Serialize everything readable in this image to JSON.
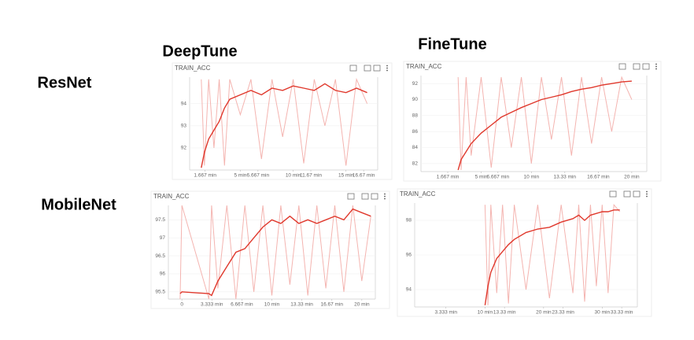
{
  "columns": [
    "DeepTune",
    "FineTune"
  ],
  "rows": [
    "ResNet",
    "MobileNet"
  ],
  "chart_data": [
    {
      "type": "line",
      "title": "TRAIN_ACC",
      "x": [
        1.3,
        1.6,
        2,
        2.5,
        3,
        3.5,
        4,
        5,
        6,
        7,
        8,
        9,
        10,
        11,
        12,
        13,
        14,
        15,
        16,
        17
      ],
      "series": [
        {
          "color": "#f4b4b0",
          "values": [
            95.1,
            91.2,
            95.1,
            92.0,
            95.1,
            91.2,
            95.1,
            93.5,
            95.1,
            91.5,
            95.1,
            92.5,
            95.1,
            91.3,
            95.1,
            93.0,
            95.1,
            91.2,
            95.1,
            94.0
          ]
        },
        {
          "color": "#e0382c",
          "values": [
            91.1,
            91.8,
            92.4,
            92.8,
            93.2,
            93.8,
            94.2,
            94.4,
            94.6,
            94.4,
            94.7,
            94.6,
            94.8,
            94.7,
            94.6,
            94.9,
            94.6,
            94.5,
            94.7,
            94.5
          ]
        }
      ],
      "xlim": [
        0.2,
        18
      ],
      "ylim": [
        91.0,
        95.2
      ],
      "yticks": [
        92,
        93,
        94
      ],
      "xticks": [
        {
          "value": 1.667,
          "label": "1.667 min"
        },
        {
          "value": 5,
          "label": "5 min"
        },
        {
          "value": 6.667,
          "label": "6.667 min"
        },
        {
          "value": 10,
          "label": "10 min"
        },
        {
          "value": 11.67,
          "label": "11.67 min"
        },
        {
          "value": 15,
          "label": "15 min"
        },
        {
          "value": 16.67,
          "label": "16.67 min"
        }
      ]
    },
    {
      "type": "line",
      "title": "TRAIN_ACC",
      "x": [
        2.7,
        3,
        3.5,
        4,
        5,
        6,
        7,
        8,
        9,
        10,
        11,
        12,
        13,
        14,
        15,
        16,
        17,
        18,
        19,
        20
      ],
      "series": [
        {
          "color": "#f4b4b0",
          "values": [
            92.8,
            81.2,
            92.8,
            83,
            92.8,
            81.5,
            92.8,
            84,
            92.8,
            82,
            92.8,
            85,
            92.8,
            83,
            92.8,
            84.5,
            92.8,
            86,
            92.8,
            90
          ]
        },
        {
          "color": "#e0382c",
          "values": [
            81.2,
            82.5,
            83.5,
            84.5,
            85.8,
            86.8,
            87.8,
            88.4,
            89,
            89.5,
            90,
            90.3,
            90.6,
            91,
            91.3,
            91.5,
            91.8,
            92,
            92.2,
            92.3
          ]
        }
      ],
      "xlim": [
        -1,
        21.5
      ],
      "ylim": [
        81,
        93
      ],
      "yticks": [
        82,
        84,
        86,
        88,
        90,
        92
      ],
      "xticks": [
        {
          "value": 1.667,
          "label": "1.667 min"
        },
        {
          "value": 5,
          "label": "5 min"
        },
        {
          "value": 6.667,
          "label": "6.667 min"
        },
        {
          "value": 10,
          "label": "10 min"
        },
        {
          "value": 13.33,
          "label": "13.33 min"
        },
        {
          "value": 16.67,
          "label": "16.67 min"
        },
        {
          "value": 20,
          "label": "20 min"
        }
      ]
    },
    {
      "type": "line",
      "title": "TRAIN_ACC",
      "x": [
        -0.2,
        0,
        3,
        3.3,
        4,
        5,
        6,
        7,
        8,
        9,
        10,
        11,
        12,
        13,
        14,
        15,
        16,
        17,
        18,
        19,
        20,
        21
      ],
      "series": [
        {
          "color": "#f4b4b0",
          "values": [
            95.3,
            97.9,
            95.3,
            97.9,
            95.6,
            97.9,
            95.3,
            97.9,
            95.5,
            97.9,
            95.4,
            97.9,
            95.7,
            97.9,
            95.4,
            97.9,
            95.6,
            97.9,
            95.5,
            97.9,
            95.8,
            97.6
          ]
        },
        {
          "color": "#e0382c",
          "values": [
            95.45,
            95.5,
            95.45,
            95.4,
            95.8,
            96.2,
            96.6,
            96.7,
            97.0,
            97.3,
            97.5,
            97.4,
            97.6,
            97.4,
            97.5,
            97.4,
            97.5,
            97.6,
            97.5,
            97.8,
            97.7,
            97.6
          ]
        }
      ],
      "xlim": [
        -1.5,
        21.5
      ],
      "ylim": [
        95.3,
        97.9
      ],
      "yticks": [
        95.5,
        96,
        96.5,
        97,
        97.5
      ],
      "xticks": [
        0,
        {
          "value": 3.333,
          "label": "3.333 min"
        },
        {
          "value": 6.667,
          "label": "6.667 min"
        },
        {
          "value": 10,
          "label": "10 min"
        },
        {
          "value": 13.33,
          "label": "13.33 min"
        },
        {
          "value": 16.67,
          "label": "16.67 min"
        },
        {
          "value": 20,
          "label": "20 min"
        }
      ]
    },
    {
      "type": "line",
      "title": "TRAIN_ACC",
      "x": [
        10,
        10.5,
        11,
        12,
        13,
        14,
        15,
        17,
        19,
        21,
        23,
        25,
        26,
        27,
        28,
        29,
        30,
        31,
        32,
        33
      ],
      "series": [
        {
          "color": "#f4b4b0",
          "values": [
            98.9,
            93.1,
            98.9,
            93.8,
            98.9,
            93.2,
            98.9,
            94,
            98.9,
            93.5,
            98.9,
            93.8,
            98.9,
            93.3,
            98.9,
            94.2,
            98.9,
            93.8,
            98.9,
            98.5
          ]
        },
        {
          "color": "#e0382c",
          "values": [
            93.1,
            94.2,
            95,
            95.8,
            96.2,
            96.6,
            96.9,
            97.3,
            97.5,
            97.6,
            97.9,
            98.1,
            98.3,
            98.0,
            98.3,
            98.4,
            98.5,
            98.5,
            98.6,
            98.6
          ]
        }
      ],
      "xlim": [
        -2,
        36
      ],
      "ylim": [
        93.0,
        99.0
      ],
      "yticks": [
        94,
        96,
        98
      ],
      "xticks": [
        {
          "value": 3.333,
          "label": "3.333 min"
        },
        {
          "value": 10,
          "label": "10 min"
        },
        {
          "value": 13.33,
          "label": "13.33 min"
        },
        {
          "value": 20,
          "label": "20 min"
        },
        {
          "value": 23.33,
          "label": "23.33 min"
        },
        {
          "value": 30,
          "label": "30 min"
        },
        {
          "value": 33.33,
          "label": "33.33 min"
        }
      ]
    }
  ]
}
